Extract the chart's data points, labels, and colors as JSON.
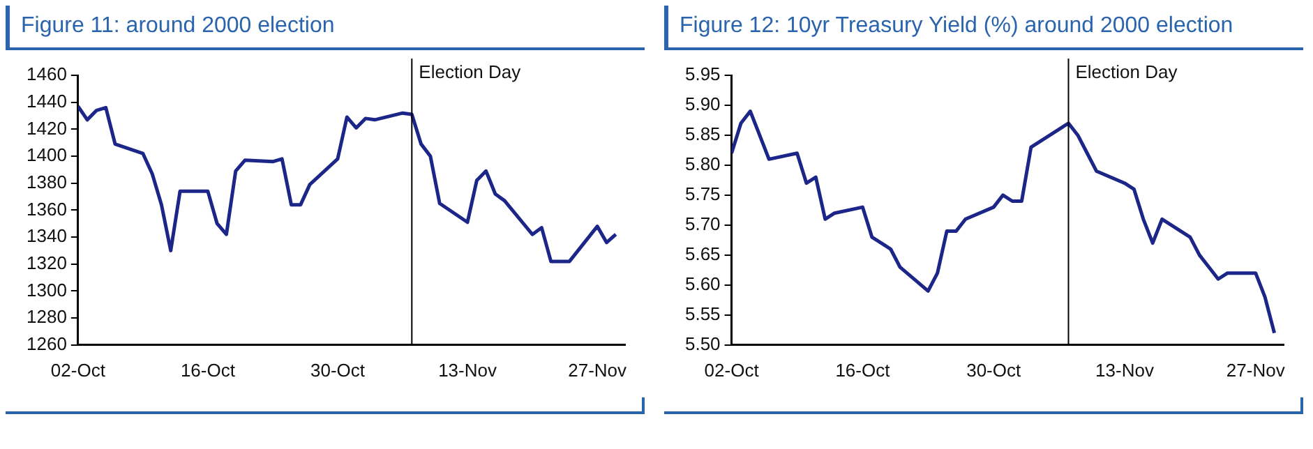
{
  "chart_data": [
    {
      "type": "line",
      "title": "Figure 11: around 2000 election",
      "x": [
        "2000-10-02",
        "2000-10-03",
        "2000-10-04",
        "2000-10-05",
        "2000-10-06",
        "2000-10-09",
        "2000-10-10",
        "2000-10-11",
        "2000-10-12",
        "2000-10-13",
        "2000-10-16",
        "2000-10-17",
        "2000-10-18",
        "2000-10-19",
        "2000-10-20",
        "2000-10-23",
        "2000-10-24",
        "2000-10-25",
        "2000-10-26",
        "2000-10-27",
        "2000-10-30",
        "2000-10-31",
        "2000-11-01",
        "2000-11-02",
        "2000-11-03",
        "2000-11-06",
        "2000-11-07",
        "2000-11-08",
        "2000-11-09",
        "2000-11-10",
        "2000-11-13",
        "2000-11-14",
        "2000-11-15",
        "2000-11-16",
        "2000-11-17",
        "2000-11-20",
        "2000-11-21",
        "2000-11-22",
        "2000-11-24",
        "2000-11-27",
        "2000-11-28",
        "2000-11-29"
      ],
      "series": [
        {
          "color": "#1c2588",
          "values": [
            1437,
            1427,
            1434,
            1436,
            1409,
            1402,
            1387,
            1364,
            1330,
            1374,
            1374,
            1350,
            1342,
            1389,
            1397,
            1396,
            1398,
            1364,
            1364,
            1379,
            1398,
            1429,
            1421,
            1428,
            1427,
            1432,
            1431,
            1409,
            1400,
            1365,
            1351,
            1382,
            1389,
            1372,
            1367,
            1342,
            1347,
            1322,
            1322,
            1348,
            1336,
            1342
          ]
        }
      ],
      "xlim": [
        "2000-10-02",
        "2000-11-30"
      ],
      "xticks": [
        {
          "value": "2000-10-02",
          "label": "02-Oct"
        },
        {
          "value": "2000-10-16",
          "label": "16-Oct"
        },
        {
          "value": "2000-10-30",
          "label": "30-Oct"
        },
        {
          "value": "2000-11-13",
          "label": "13-Nov"
        },
        {
          "value": "2000-11-27",
          "label": "27-Nov"
        }
      ],
      "ylim": [
        1260,
        1460
      ],
      "yticks": [
        1260,
        1280,
        1300,
        1320,
        1340,
        1360,
        1380,
        1400,
        1420,
        1440,
        1460
      ],
      "ref_lines": [
        {
          "axis": "x",
          "value": "2000-11-07",
          "label": "Election Day",
          "color": "#000000"
        }
      ],
      "grid": false,
      "legend": false,
      "marker": "none",
      "line_style": "solid"
    },
    {
      "type": "line",
      "title": "Figure 12: 10yr Treasury Yield (%) around 2000 election",
      "x": [
        "2000-10-02",
        "2000-10-03",
        "2000-10-04",
        "2000-10-05",
        "2000-10-06",
        "2000-10-09",
        "2000-10-10",
        "2000-10-11",
        "2000-10-12",
        "2000-10-13",
        "2000-10-16",
        "2000-10-17",
        "2000-10-18",
        "2000-10-19",
        "2000-10-20",
        "2000-10-23",
        "2000-10-24",
        "2000-10-25",
        "2000-10-26",
        "2000-10-27",
        "2000-10-30",
        "2000-10-31",
        "2000-11-01",
        "2000-11-02",
        "2000-11-03",
        "2000-11-06",
        "2000-11-07",
        "2000-11-08",
        "2000-11-09",
        "2000-11-10",
        "2000-11-13",
        "2000-11-14",
        "2000-11-15",
        "2000-11-16",
        "2000-11-17",
        "2000-11-20",
        "2000-11-21",
        "2000-11-22",
        "2000-11-23",
        "2000-11-24",
        "2000-11-27",
        "2000-11-28",
        "2000-11-29"
      ],
      "series": [
        {
          "color": "#1c2588",
          "values": [
            5.82,
            5.87,
            5.89,
            5.85,
            5.81,
            5.82,
            5.77,
            5.78,
            5.71,
            5.72,
            5.73,
            5.68,
            5.67,
            5.66,
            5.63,
            5.59,
            5.62,
            5.69,
            5.69,
            5.71,
            5.73,
            5.75,
            5.74,
            5.74,
            5.83,
            5.86,
            5.87,
            5.85,
            5.82,
            5.79,
            5.77,
            5.76,
            5.71,
            5.67,
            5.71,
            5.68,
            5.65,
            5.63,
            5.61,
            5.62,
            5.62,
            5.58,
            5.52
          ]
        }
      ],
      "xlim": [
        "2000-10-02",
        "2000-11-30"
      ],
      "xticks": [
        {
          "value": "2000-10-02",
          "label": "02-Oct"
        },
        {
          "value": "2000-10-16",
          "label": "16-Oct"
        },
        {
          "value": "2000-10-30",
          "label": "30-Oct"
        },
        {
          "value": "2000-11-13",
          "label": "13-Nov"
        },
        {
          "value": "2000-11-27",
          "label": "27-Nov"
        }
      ],
      "ylim": [
        5.5,
        5.95
      ],
      "yticks": [
        {
          "value": 5.5,
          "label": "5.50"
        },
        {
          "value": 5.55,
          "label": "5.55"
        },
        {
          "value": 5.6,
          "label": "5.60"
        },
        {
          "value": 5.65,
          "label": "5.65"
        },
        {
          "value": 5.7,
          "label": "5.70"
        },
        {
          "value": 5.75,
          "label": "5.75"
        },
        {
          "value": 5.8,
          "label": "5.80"
        },
        {
          "value": 5.85,
          "label": "5.85"
        },
        {
          "value": 5.9,
          "label": "5.90"
        },
        {
          "value": 5.95,
          "label": "5.95"
        }
      ],
      "ref_lines": [
        {
          "axis": "x",
          "value": "2000-11-07",
          "label": "Election Day",
          "color": "#000000"
        }
      ],
      "grid": false,
      "legend": false,
      "marker": "none",
      "line_style": "solid"
    }
  ]
}
